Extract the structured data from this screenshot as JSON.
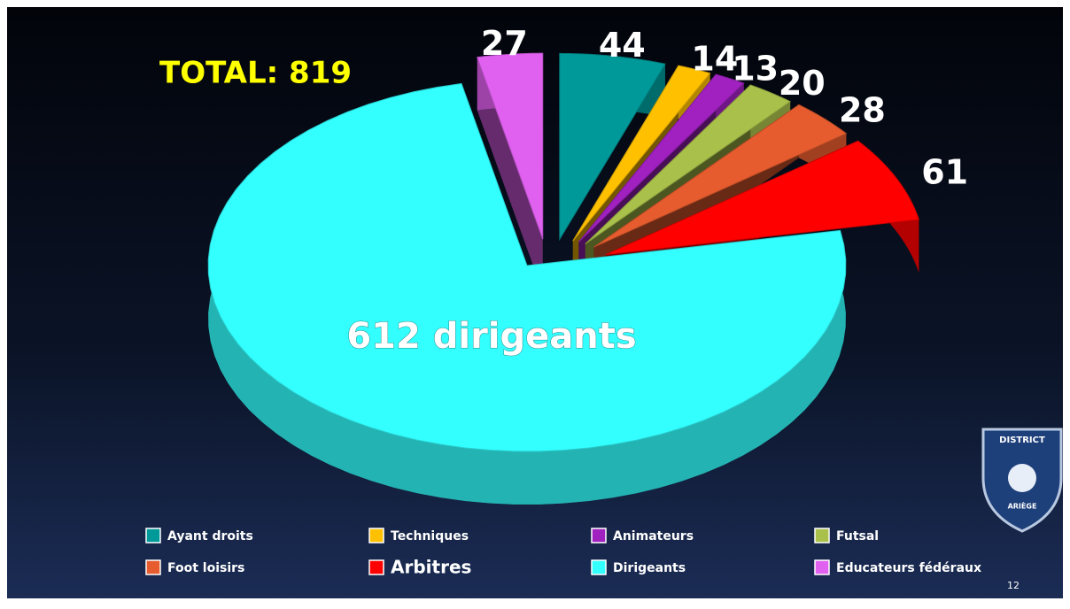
{
  "chart_data": {
    "type": "pie3d",
    "title": "TOTAL: 819",
    "categories": [
      "Ayant droits",
      "Techniques",
      "Animateurs",
      "Futsal",
      "Foot loisirs",
      "Arbitres",
      "Dirigeants",
      "Educateurs fédéraux"
    ],
    "values": [
      44,
      14,
      13,
      20,
      28,
      61,
      612,
      27
    ],
    "value_labels": [
      "44",
      "14",
      "13",
      "20",
      "28",
      "61",
      "612 dirigeants",
      "27"
    ],
    "colors": [
      "#009999",
      "#ffc000",
      "#a020c0",
      "#a9c04a",
      "#e65c2e",
      "#ff0000",
      "#33ffff",
      "#e060f0"
    ],
    "legend": "bottom"
  },
  "page_number": "12",
  "logo": {
    "top": "DISTRICT",
    "bottom": "ARIÈGE"
  }
}
